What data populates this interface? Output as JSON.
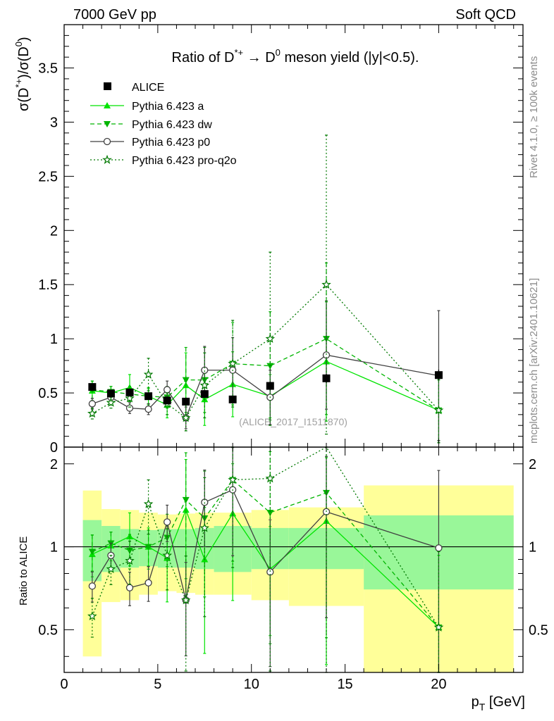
{
  "header": {
    "left": "7000 GeV pp",
    "right": "Soft QCD"
  },
  "side_labels": {
    "top": "Rivet 4.1.0, ≥ 100k events",
    "bottom": "mcplots.cern.ch [arXiv:2401.10621]"
  },
  "colors": {
    "pythia_a": "#00e400",
    "pythia_dw": "#00b400",
    "pythia_p0": "#404040",
    "pythia_pro": "#007800",
    "band_stat": "#99f799",
    "band_syst": "#ffff99",
    "data": "#000000"
  },
  "chart_data": {
    "type": "line",
    "title": "Ratio of D*+ → D0 meson yield (|y|<0.5).",
    "title_parts": {
      "a": "Ratio of D",
      "sup1": "*+",
      "b": " → D",
      "sup2": "0",
      "c": " meson yield (|y|<0.5)."
    },
    "ylabel": "σ(D*+)/σ(D0)",
    "ylabel_parts": {
      "a": "σ(D",
      "sup1": "*+",
      "b": ")/σ(D",
      "sup2": "0",
      "c": ")"
    },
    "ratio_ylabel": "Ratio to ALICE",
    "xlabel": "p_T [GeV]",
    "xlabel_parts": {
      "p": "p",
      "sub": "T",
      "rest": " [GeV]"
    },
    "watermark": "(ALICE_2017_I1511870)",
    "xlim": [
      0,
      24.5
    ],
    "ylim": [
      0,
      3.9
    ],
    "ratio_ylim": [
      0.35,
      2.3
    ],
    "x_ticks": [
      "0",
      "5",
      "10",
      "15",
      "20"
    ],
    "y_ticks": [
      "0",
      "0.5",
      "1",
      "1.5",
      "2",
      "2.5",
      "3",
      "3.5"
    ],
    "ratio_ticks": [
      "0.5",
      "1",
      "2"
    ],
    "x_centers": [
      1.5,
      2.5,
      3.5,
      4.5,
      5.5,
      6.5,
      7.5,
      9,
      11,
      14,
      20
    ],
    "bin_edges": [
      1,
      2,
      3,
      4,
      5,
      6,
      7,
      8,
      10,
      12,
      16,
      24
    ],
    "data": {
      "name": "ALICE",
      "values": [
        0.555,
        0.495,
        0.505,
        0.47,
        0.43,
        0.42,
        0.49,
        0.44,
        0.565,
        0.635,
        0.665
      ],
      "err": [
        0.03,
        0.03,
        0.03,
        0.03,
        0.03,
        0.03,
        0.03,
        0.03,
        0.04,
        0.04,
        0.05
      ],
      "ratio_stat": [
        0.25,
        0.19,
        0.16,
        0.15,
        0.16,
        0.16,
        0.17,
        0.19,
        0.17,
        0.17,
        0.3
      ],
      "ratio_syst": [
        0.6,
        0.37,
        0.36,
        0.33,
        0.31,
        0.32,
        0.33,
        0.33,
        0.36,
        0.39,
        0.67
      ]
    },
    "series": [
      {
        "name": "Pythia 6.423 a",
        "key": "a",
        "marker": "triangle-up",
        "dash": "",
        "values": [
          0.52,
          0.5,
          0.55,
          0.47,
          0.39,
          0.57,
          0.44,
          0.58,
          0.47,
          0.79,
          0.34
        ],
        "err": [
          0.09,
          0.06,
          0.12,
          0.08,
          0.12,
          0.3,
          0.24,
          0.3,
          0.2,
          0.55,
          0.28
        ],
        "ratio": [
          0.94,
          1.01,
          1.09,
          1.0,
          0.91,
          1.36,
          0.9,
          1.32,
          0.83,
          1.24,
          0.51
        ]
      },
      {
        "name": "Pythia 6.423 dw",
        "key": "dw",
        "marker": "triangle-down",
        "dash": "6,4",
        "values": [
          0.53,
          0.51,
          0.49,
          0.47,
          0.46,
          0.62,
          0.62,
          0.77,
          0.75,
          1.0,
          0.34
        ],
        "err": [
          0.08,
          0.05,
          0.07,
          0.07,
          0.1,
          0.3,
          0.3,
          0.38,
          0.5,
          0.7,
          0.3
        ],
        "ratio": [
          0.96,
          1.03,
          0.97,
          1.0,
          1.08,
          1.48,
          1.27,
          1.75,
          1.33,
          1.57,
          0.51
        ]
      },
      {
        "name": "Pythia 6.423 p0",
        "key": "p0",
        "marker": "circle-open",
        "dash": "",
        "values": [
          0.4,
          0.46,
          0.36,
          0.35,
          0.53,
          0.27,
          0.71,
          0.71,
          0.46,
          0.85,
          0.66
        ],
        "err": [
          0.05,
          0.05,
          0.05,
          0.05,
          0.08,
          0.1,
          0.22,
          0.3,
          0.25,
          0.5,
          0.6
        ],
        "ratio": [
          0.72,
          0.93,
          0.71,
          0.74,
          1.23,
          0.64,
          1.45,
          1.61,
          0.81,
          1.34,
          0.99
        ]
      },
      {
        "name": "Pythia 6.423 pro-q2o",
        "key": "pro",
        "marker": "star-open",
        "dash": "2,3",
        "values": [
          0.31,
          0.41,
          0.45,
          0.67,
          0.4,
          0.27,
          0.57,
          0.77,
          1.0,
          1.5,
          0.34
        ],
        "err": [
          0.05,
          0.05,
          0.08,
          0.15,
          0.1,
          0.12,
          0.3,
          0.4,
          0.8,
          1.38,
          0.3
        ],
        "ratio": [
          0.56,
          0.83,
          0.89,
          1.43,
          0.93,
          0.64,
          1.17,
          1.75,
          1.77,
          2.36,
          0.51
        ]
      }
    ]
  }
}
